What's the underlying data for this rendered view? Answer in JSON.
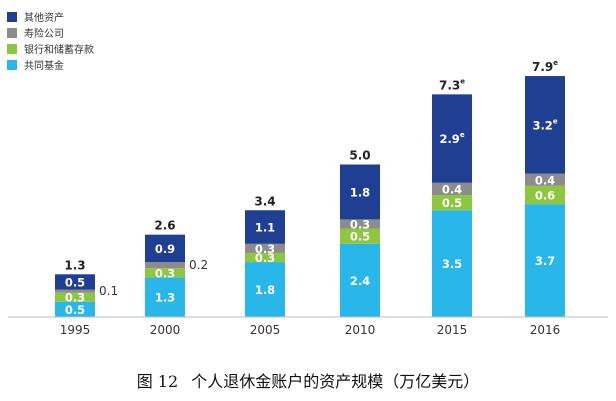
{
  "chart_data": {
    "type": "bar",
    "stacked": true,
    "categories": [
      "1995",
      "2000",
      "2005",
      "2010",
      "2015",
      "2016"
    ],
    "series": [
      {
        "name": "共同基金",
        "color": "#29b6e8",
        "values": [
          0.5,
          1.3,
          1.8,
          2.4,
          3.5,
          3.7
        ]
      },
      {
        "name": "银行和储蓄存款",
        "color": "#8dc63f",
        "values": [
          0.3,
          0.3,
          0.3,
          0.5,
          0.5,
          0.6
        ]
      },
      {
        "name": "寿险公司",
        "color": "#8c8c8c",
        "values": [
          0.1,
          0.2,
          0.3,
          0.3,
          0.4,
          0.4
        ]
      },
      {
        "name": "其他资产",
        "color": "#1f3f93",
        "values": [
          0.5,
          0.9,
          1.1,
          1.8,
          2.9,
          3.2
        ]
      }
    ],
    "segment_labels": [
      [
        "0.5",
        "1.3",
        "1.8",
        "2.4",
        "3.5",
        "3.7"
      ],
      [
        "0.3",
        "0.3",
        "0.3",
        "0.5",
        "0.5",
        "0.6"
      ],
      [
        "0.1",
        "0.2",
        "0.3",
        "0.3",
        "0.4",
        "0.4"
      ],
      [
        "0.5",
        "0.9",
        "1.1",
        "1.8",
        "2.9e",
        "3.2e"
      ]
    ],
    "totals": [
      "1.3",
      "2.6",
      "3.4",
      "5.0",
      "7.3e",
      "7.9e"
    ],
    "ylim": [
      0,
      8.5
    ],
    "legend_position": "top-left",
    "grid": false
  },
  "caption": {
    "figure_no": "图 12",
    "title": "个人退休金账户的资产规模（万亿美元）"
  }
}
